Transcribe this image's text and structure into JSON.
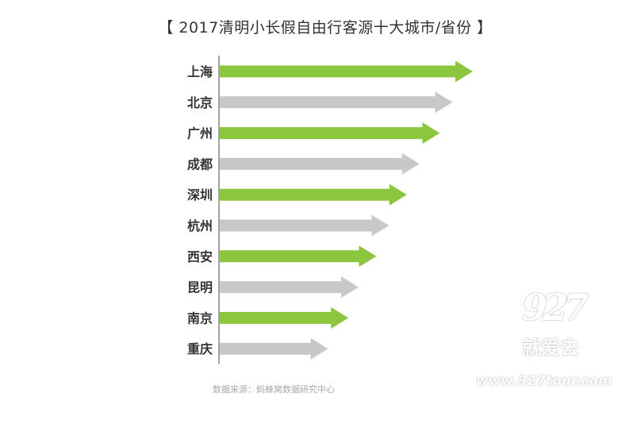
{
  "chart_data": {
    "type": "bar",
    "orientation": "horizontal",
    "title": "【 2017清明小长假自由行客源十大城市/省份 】",
    "categories": [
      "上海",
      "北京",
      "广州",
      "成都",
      "深圳",
      "杭州",
      "西安",
      "昆明",
      "南京",
      "重庆"
    ],
    "values": [
      100,
      92,
      87,
      79,
      74,
      67,
      62,
      55,
      51,
      43
    ],
    "highlight": [
      true,
      false,
      true,
      false,
      true,
      false,
      true,
      false,
      true,
      false
    ],
    "colors": {
      "highlight": "#8cc63f",
      "normal": "#c8c8c8"
    },
    "value_axis_visible": false,
    "grid": false
  },
  "source": "数据来源：蚂蜂窝数据研究中心",
  "watermark": {
    "number": "927",
    "name": "就爱去",
    "url": "www.927tour.com"
  }
}
